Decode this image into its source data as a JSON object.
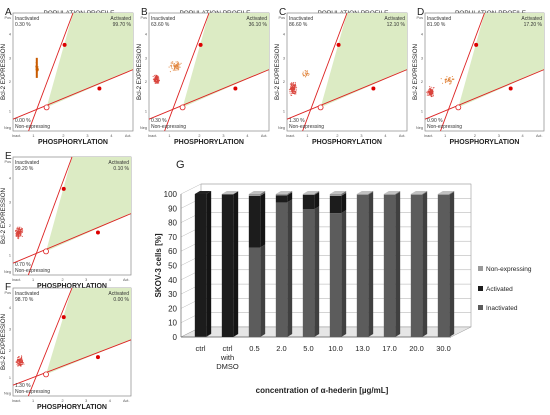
{
  "population_panels": [
    {
      "letter": "A",
      "title": "POPULATION PROFILE",
      "xlabel": "PHOSPHORYLATION",
      "ylabel": "Bcl-2 EXPRESSION",
      "inactivated": {
        "label": "Inactivated",
        "value": "0.30 %"
      },
      "activated": {
        "label": "Activated",
        "value": "99.70 %"
      },
      "nonexpressing": {
        "label": "Non-expressing",
        "value": "0.00 %"
      },
      "x_ticks": [
        "Inact.",
        "1",
        "2",
        "3",
        "4",
        "Act."
      ],
      "y_ticks": [
        "Pos",
        "4",
        "3",
        "2",
        "1",
        "Neg"
      ]
    },
    {
      "letter": "B",
      "title": "POPULATION PROFILE",
      "xlabel": "PHOSPHORYLATION",
      "ylabel": "Bcl-2 EXPRESSION",
      "inactivated": {
        "label": "Inactivated",
        "value": "63.60 %"
      },
      "activated": {
        "label": "Activated",
        "value": "36.10 %"
      },
      "nonexpressing": {
        "label": "Non-expressing",
        "value": "0.30 %"
      },
      "x_ticks": [
        "Inact.",
        "1",
        "2",
        "3",
        "4",
        "Act."
      ],
      "y_ticks": [
        "Pos",
        "4",
        "3",
        "2",
        "1",
        "Neg"
      ]
    },
    {
      "letter": "C",
      "title": "POPULATION PROFILE",
      "xlabel": "PHOSPHORYLATION",
      "ylabel": "Bcl-2 EXPRESSION",
      "inactivated": {
        "label": "Inactivated",
        "value": "86.60 %"
      },
      "activated": {
        "label": "Activated",
        "value": "12.10 %"
      },
      "nonexpressing": {
        "label": "Non-expressing",
        "value": "1.30 %"
      },
      "x_ticks": [
        "Inact.",
        "1",
        "2",
        "3",
        "4",
        "Act."
      ],
      "y_ticks": [
        "Pos",
        "4",
        "3",
        "2",
        "1",
        "Neg"
      ]
    },
    {
      "letter": "D",
      "title": "POPULATION PROFILE",
      "xlabel": "PHOSPHORYLATION",
      "ylabel": "Bcl-2 EXPRESSION",
      "inactivated": {
        "label": "Inactivated",
        "value": "81.90 %"
      },
      "activated": {
        "label": "Activated",
        "value": "17.20 %"
      },
      "nonexpressing": {
        "label": "Non-expressing",
        "value": "0.90 %"
      },
      "x_ticks": [
        "Inact.",
        "1",
        "2",
        "3",
        "4",
        "Act."
      ],
      "y_ticks": [
        "Pos",
        "4",
        "3",
        "2",
        "1",
        "Neg"
      ]
    },
    {
      "letter": "E",
      "title": "",
      "xlabel": "PHOSPHORYLATION",
      "ylabel": "Bcl-2 EXPRESSION",
      "inactivated": {
        "label": "Inactivated",
        "value": "99.20 %"
      },
      "activated": {
        "label": "Activated",
        "value": "0.10 %"
      },
      "nonexpressing": {
        "label": "Non-expressing",
        "value": "0.70 %"
      },
      "x_ticks": [
        "Inact.",
        "1",
        "2",
        "3",
        "4",
        "Act."
      ],
      "y_ticks": [
        "Pos",
        "4",
        "3",
        "2",
        "1",
        "Neg"
      ]
    },
    {
      "letter": "F",
      "title": "",
      "xlabel": "PHOSPHORYLATION",
      "ylabel": "Bcl-2 EXPRESSION",
      "inactivated": {
        "label": "Inactivated",
        "value": "98.70 %"
      },
      "activated": {
        "label": "Activated",
        "value": "0.00 %"
      },
      "nonexpressing": {
        "label": "Non-expressing",
        "value": "1.30 %"
      },
      "x_ticks": [
        "Inact.",
        "1",
        "2",
        "3",
        "4",
        "Act."
      ],
      "y_ticks": [
        "Pos",
        "4",
        "3",
        "2",
        "1",
        "Neg"
      ]
    }
  ],
  "chart_data": {
    "type": "bar",
    "stacked": true,
    "panel_letter": "G",
    "title": "",
    "xlabel": "concentration of α-hederin [µg/mL]",
    "ylabel": "SKOV-3 cells [%]",
    "ylim": [
      0,
      100
    ],
    "yticks": [
      "0",
      "10",
      "20",
      "30",
      "40",
      "50",
      "60",
      "70",
      "80",
      "90",
      "100"
    ],
    "categories": [
      "ctrl",
      "ctrl with DMSO",
      "0.5",
      "2.0",
      "5.0",
      "10.0",
      "13.0",
      "17.0",
      "20.0",
      "30.0"
    ],
    "series": [
      {
        "name": "Non-expressing",
        "values": [
          0.0,
          0.3,
          1.3,
          0.9,
          0.7,
          1.3,
          0.5,
          0.5,
          0.5,
          0.5
        ]
      },
      {
        "name": "Activated",
        "values": [
          99.7,
          99.7,
          36.1,
          5.0,
          10.0,
          12.1,
          0.0,
          0.0,
          0.0,
          0.0
        ]
      },
      {
        "name": "Inactivated",
        "values": [
          0.3,
          0.0,
          62.6,
          94.1,
          89.3,
          86.6,
          99.5,
          99.5,
          99.5,
          99.5
        ]
      }
    ],
    "legend_position": "right",
    "grid": true,
    "colors": {
      "Non-expressing": "#9a9a9a",
      "Activated": "#1c1c1c",
      "Inactivated": "#5c5c5c"
    }
  }
}
